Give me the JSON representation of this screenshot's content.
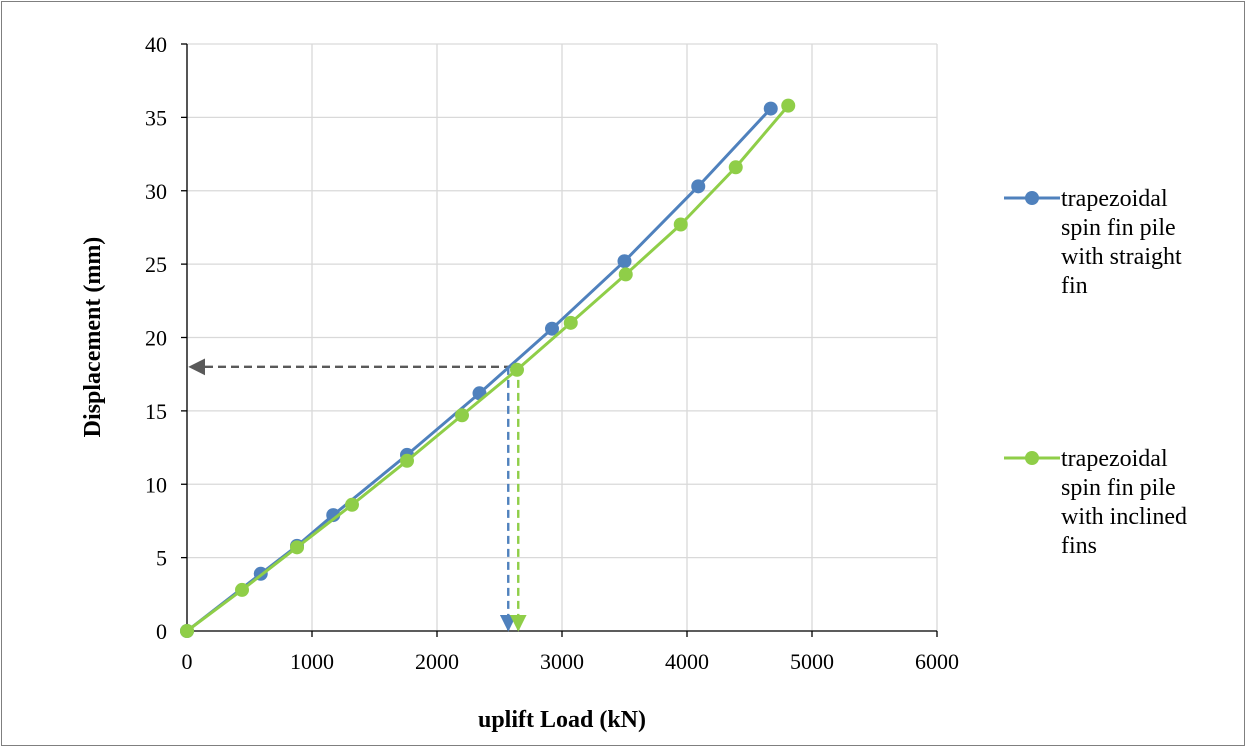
{
  "chart_data": {
    "type": "line",
    "title": "",
    "xlabel": "uplift Load (kN)",
    "ylabel": "Displacement (mm)",
    "xlim": [
      0,
      6000
    ],
    "ylim": [
      0,
      40
    ],
    "xticks": [
      0,
      1000,
      2000,
      3000,
      4000,
      5000,
      6000
    ],
    "yticks": [
      0,
      5,
      10,
      15,
      20,
      25,
      30,
      35,
      40
    ],
    "grid": true,
    "legend_position": "right",
    "series": [
      {
        "name": "trapezoidal spin fin pile with straight fin",
        "color": "#4f81bd",
        "x": [
          0,
          590,
          880,
          1170,
          1760,
          2340,
          2920,
          3500,
          4090,
          4670
        ],
        "y": [
          0,
          3.9,
          5.8,
          7.9,
          12.0,
          16.2,
          20.6,
          25.2,
          30.3,
          35.6
        ]
      },
      {
        "name": "trapezoidal spin fin pile with inclined fins",
        "color": "#8fce48",
        "x": [
          0,
          440,
          880,
          1320,
          1760,
          2200,
          2640,
          3070,
          3510,
          3950,
          4390,
          4810
        ],
        "y": [
          0,
          2.8,
          5.7,
          8.6,
          11.6,
          14.7,
          17.8,
          21.0,
          24.3,
          27.7,
          31.6,
          35.8
        ]
      }
    ],
    "annotations": [
      {
        "type": "dashed-arrow-horizontal",
        "color": "#595959",
        "from": [
          2600,
          18
        ],
        "to": [
          0,
          18
        ]
      },
      {
        "type": "dashed-arrow-vertical",
        "color": "#4f81bd",
        "from": [
          2570,
          18
        ],
        "to": [
          2570,
          0
        ]
      },
      {
        "type": "dashed-arrow-vertical",
        "color": "#8fce48",
        "from": [
          2650,
          18
        ],
        "to": [
          2650,
          0
        ]
      }
    ]
  }
}
